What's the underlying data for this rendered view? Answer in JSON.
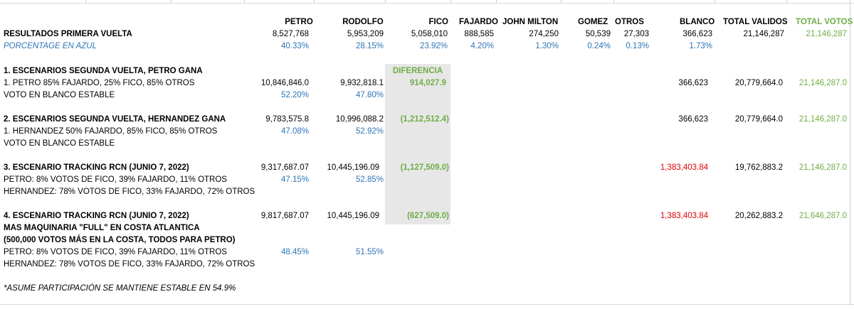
{
  "header": {
    "petro": "PETRO",
    "rodolfo": "RODOLFO",
    "fico": "FICO",
    "fajardo": "FAJARDO",
    "john_milton": "JOHN MILTON",
    "gomez": "GOMEZ",
    "otros": "OTROS",
    "blanco": "BLANCO",
    "total_validos": "TOTAL VALIDOS",
    "total_votos": "TOTAL VOTOS"
  },
  "primera_vuelta": {
    "label": "RESULTADOS PRIMERA VUELTA",
    "petro": "8,527,768",
    "rodolfo": "5,953,209",
    "fico": "5,058,010",
    "fajardo": "888,585",
    "john_milton": "274,250",
    "gomez": "50,539",
    "otros": "27,303",
    "blanco": "366,623",
    "total_validos": "21,146,287",
    "total_votos": "21,146,287"
  },
  "porcentaje": {
    "label": "PORCENTAGE EN AZUL",
    "petro": "40.33%",
    "rodolfo": "28.15%",
    "fico": "23.92%",
    "fajardo": "4.20%",
    "john_milton": "1.30%",
    "gomez": "0.24%",
    "otros": "0.13%",
    "blanco": "1.73%"
  },
  "escenario1": {
    "title": "1. ESCENARIOS SEGUNDA VUELTA, PETRO GANA",
    "diferencia_label": "DIFERENCIA",
    "line1": "1. PETRO 85% FAJARDO, 25% FICO, 85% OTROS",
    "petro": "10,846,846.0",
    "rodolfo": "9,932,818.1",
    "diferencia": "914,027.9",
    "blanco": "366,623",
    "total_validos": "20,779,664.0",
    "total_votos": "21,146,287.0",
    "line2": "VOTO EN BLANCO ESTABLE",
    "petro_pct": "52.20%",
    "rodolfo_pct": "47.80%"
  },
  "escenario2": {
    "title": "2. ESCENARIOS SEGUNDA VUELTA, HERNANDEZ GANA",
    "petro": "9,783,575.8",
    "rodolfo": "10,996,088.2",
    "diferencia": "(1,212,512.4)",
    "blanco": "366,623",
    "total_validos": "20,779,664.0",
    "total_votos": "21,146,287.0",
    "line1": "1. HERNANDEZ 50% FAJARDO, 85% FICO, 85% OTROS",
    "petro_pct": "47.08%",
    "rodolfo_pct": "52.92%",
    "line2": "VOTO EN BLANCO ESTABLE"
  },
  "escenario3": {
    "title": "3. ESCENARIO TRACKING RCN (JUNIO 7, 2022)",
    "petro": "9,317,687.07",
    "rodolfo": "10,445,196.09",
    "diferencia": "(1,127,509.0)",
    "blanco": "1,383,403.84",
    "total_validos": "19,762,883.2",
    "total_votos": "21,146,287.0",
    "line1": "PETRO: 8% VOTOS DE FICO, 39% FAJARDO, 11% OTROS",
    "petro_pct": "47.15%",
    "rodolfo_pct": "52.85%",
    "line2": "HERNANDEZ: 78% VOTOS DE FICO, 33% FAJARDO, 72% OTROS"
  },
  "escenario4": {
    "title": "4. ESCENARIO TRACKING RCN (JUNIO 7, 2022)",
    "petro": "9,817,687.07",
    "rodolfo": "10,445,196.09",
    "diferencia": "(627,509.0)",
    "blanco": "1,383,403.84",
    "total_validos": "20,262,883.2",
    "total_votos": "21,646,287.0",
    "subtitle1": "MAS MAQUINARIA \"FULL\" EN COSTA ATLANTICA",
    "subtitle2": "(500,000 VOTOS MÁS EN LA COSTA, TODOS PARA PETRO)",
    "line1": "PETRO: 8% VOTOS DE FICO, 39% FAJARDO, 11% OTROS",
    "petro_pct": "48.45%",
    "rodolfo_pct": "51.55%",
    "line2": "HERNANDEZ: 78% VOTOS DE FICO, 33% FAJARDO, 72% OTROS"
  },
  "footnote": "*ASUME PARTICIPACIÓN SE MANTIENE ESTABLE EN 54.9%",
  "colors": {
    "blue": "#2e75b6",
    "green": "#70ad47",
    "red": "#e00000",
    "shade": "#e7e7e7"
  }
}
